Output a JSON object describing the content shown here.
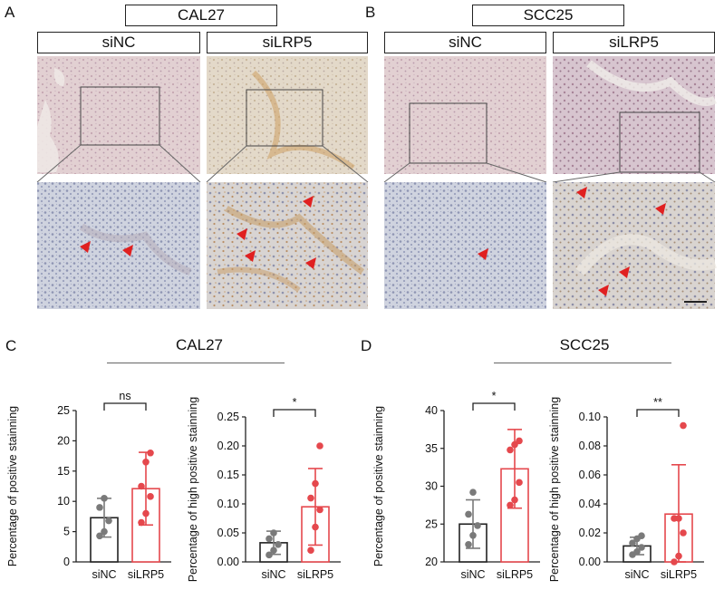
{
  "panel_letters": [
    "A",
    "B",
    "C",
    "D"
  ],
  "panelA": {
    "title": "CAL27",
    "groups": [
      "siNC",
      "siLRP5"
    ]
  },
  "panelB": {
    "title": "SCC25",
    "groups": [
      "siNC",
      "siLRP5"
    ]
  },
  "panelC": {
    "title": "CAL27"
  },
  "panelD": {
    "title": "SCC25"
  },
  "colors": {
    "siNC": "#7a7a7a",
    "siLRP5": "#e5484d",
    "arrow": "#e02020"
  },
  "chart_data": [
    {
      "id": "C1",
      "type": "bar",
      "title": "",
      "xlabel": "",
      "ylabel": "Percentage of positive stainning",
      "categories": [
        "siNC",
        "siLRP5"
      ],
      "ylim": [
        0,
        25
      ],
      "yticks": [
        0,
        5,
        10,
        15,
        20,
        25
      ],
      "ytick_labels": [
        "0",
        "5",
        "10",
        "15",
        "20",
        "25"
      ],
      "values": [
        7.3,
        12.1
      ],
      "errors": [
        3.2,
        6.0
      ],
      "points": [
        [
          4.3,
          5.0,
          6.8,
          9.0,
          10.5
        ],
        [
          6.5,
          8.0,
          10.8,
          12.5,
          16.5,
          18.0
        ]
      ],
      "significance": "ns"
    },
    {
      "id": "C2",
      "type": "bar",
      "title": "",
      "xlabel": "",
      "ylabel": "Percentage of high positive stainning",
      "categories": [
        "siNC",
        "siLRP5"
      ],
      "ylim": [
        0,
        0.25
      ],
      "yticks": [
        0,
        0.05,
        0.1,
        0.15,
        0.2,
        0.25
      ],
      "ytick_labels": [
        "0.00",
        "0.05",
        "0.10",
        "0.15",
        "0.20",
        "0.25"
      ],
      "values": [
        0.033,
        0.095
      ],
      "errors": [
        0.02,
        0.066
      ],
      "points": [
        [
          0.012,
          0.02,
          0.03,
          0.04,
          0.05
        ],
        [
          0.02,
          0.06,
          0.09,
          0.11,
          0.135,
          0.2
        ]
      ],
      "significance": "*"
    },
    {
      "id": "D1",
      "type": "bar",
      "title": "",
      "xlabel": "",
      "ylabel": "Percentage of positive stainning",
      "categories": [
        "siNC",
        "siLRP5"
      ],
      "ylim": [
        20,
        40
      ],
      "yticks": [
        20,
        25,
        30,
        35,
        40
      ],
      "ytick_labels": [
        "20",
        "25",
        "30",
        "35",
        "40"
      ],
      "values": [
        25.0,
        32.3
      ],
      "errors": [
        3.2,
        5.2
      ],
      "points": [
        [
          22.3,
          23.5,
          24.8,
          26.3,
          29.2
        ],
        [
          27.5,
          28.2,
          30.5,
          34.8,
          35.5,
          36.0
        ]
      ],
      "significance": "*"
    },
    {
      "id": "D2",
      "type": "bar",
      "title": "",
      "xlabel": "",
      "ylabel": "Percentage of high positive stainning",
      "categories": [
        "siNC",
        "siLRP5"
      ],
      "ylim": [
        0,
        0.1
      ],
      "yticks": [
        0,
        0.02,
        0.04,
        0.06,
        0.08,
        0.1
      ],
      "ytick_labels": [
        "0.00",
        "0.02",
        "0.04",
        "0.06",
        "0.08",
        "0.10"
      ],
      "values": [
        0.011,
        0.033
      ],
      "errors": [
        0.006,
        0.034
      ],
      "points": [
        [
          0.005,
          0.007,
          0.01,
          0.013,
          0.016,
          0.018
        ],
        [
          0.0,
          0.004,
          0.02,
          0.03,
          0.03,
          0.094
        ]
      ],
      "significance": "**"
    }
  ]
}
